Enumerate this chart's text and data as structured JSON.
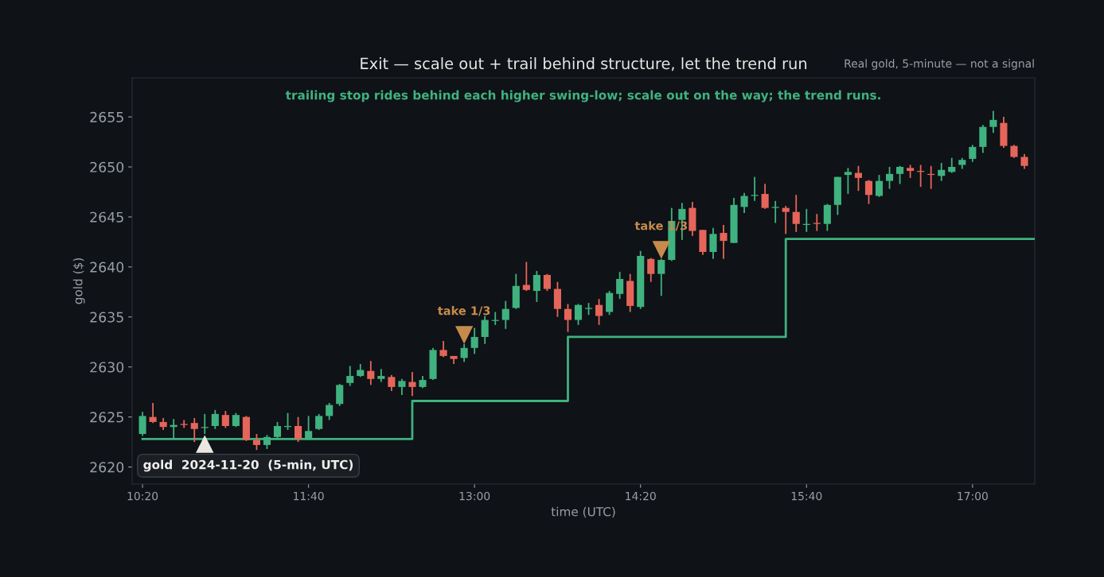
{
  "chart_data": {
    "type": "candlestick",
    "title": "Exit — scale out + trail behind structure, let the trend run",
    "subtitle": "trailing stop rides behind each higher swing-low; scale out on the way; the trend runs.",
    "xlabel": "time (UTC)",
    "ylabel": "gold ($)",
    "xlim": [
      "2024-11-20T10:15",
      "2024-11-20T17:30"
    ],
    "xticks": [
      {
        "value": "2024-11-20T10:20",
        "label": "10:20"
      },
      {
        "value": "2024-11-20T11:40",
        "label": "11:40"
      },
      {
        "value": "2024-11-20T13:00",
        "label": "13:00"
      },
      {
        "value": "2024-11-20T14:20",
        "label": "14:20"
      },
      {
        "value": "2024-11-20T15:40",
        "label": "15:40"
      },
      {
        "value": "2024-11-20T17:00",
        "label": "17:00"
      }
    ],
    "ylim": [
      2618.3,
      2658.9
    ],
    "yticks": [
      2620,
      2625,
      2630,
      2635,
      2640,
      2645,
      2650,
      2655
    ],
    "grid": false,
    "legend": false,
    "annotations": [
      "Real gold, 5-minute — not a signal",
      "gold  2024-11-20  (5-min, UTC)",
      {
        "text": "take 1/3",
        "x": "2024-11-20T12:55",
        "y": 2633.2
      },
      {
        "text": "take 1/3",
        "x": "2024-11-20T14:30",
        "y": 2641.7
      }
    ],
    "series": [
      {
        "colors": [
          "#3fb27f",
          "#e5655a",
          "#e5655a",
          "#3fb27f",
          "#e5655a",
          "#e5655a",
          "#3fb27f",
          "#3fb27f",
          "#e5655a",
          "#3fb27f",
          "#e5655a",
          "#e5655a",
          "#3fb27f",
          "#3fb27f",
          "#3fb27f",
          "#e5655a",
          "#3fb27f",
          "#3fb27f",
          "#3fb27f",
          "#3fb27f",
          "#3fb27f",
          "#3fb27f",
          "#e5655a",
          "#3fb27f",
          "#e5655a",
          "#3fb27f",
          "#e5655a",
          "#3fb27f",
          "#3fb27f",
          "#e5655a",
          "#e5655a",
          "#3fb27f",
          "#3fb27f",
          "#3fb27f",
          "#3fb27f",
          "#3fb27f",
          "#3fb27f",
          "#e5655a",
          "#3fb27f",
          "#e5655a",
          "#e5655a",
          "#e5655a",
          "#3fb27f",
          "#3fb27f",
          "#e5655a",
          "#3fb27f",
          "#3fb27f",
          "#e5655a",
          "#3fb27f",
          "#e5655a",
          "#3fb27f",
          "#3fb27f",
          "#3fb27f",
          "#e5655a",
          "#e5655a",
          "#3fb27f",
          "#e5655a",
          "#3fb27f",
          "#3fb27f",
          "#3fb27f",
          "#e5655a",
          "#3fb27f",
          "#e5655a",
          "#e5655a",
          "#3fb27f",
          "#e5655a",
          "#3fb27f",
          "#3fb27f",
          "#3fb27f",
          "#e5655a",
          "#e5655a",
          "#3fb27f",
          "#3fb27f",
          "#3fb27f",
          "#e5655a",
          "#e5655a",
          "#e5655a",
          "#3fb27f",
          "#3fb27f",
          "#3fb27f",
          "#3fb27f",
          "#3fb27f",
          "#3fb27f",
          "#e5655a",
          "#e5655a",
          "#e5655a"
        ],
        "x": [
          "2024-11-20T10:20",
          "2024-11-20T10:25",
          "2024-11-20T10:30",
          "2024-11-20T10:35",
          "2024-11-20T10:40",
          "2024-11-20T10:45",
          "2024-11-20T10:50",
          "2024-11-20T10:55",
          "2024-11-20T11:00",
          "2024-11-20T11:05",
          "2024-11-20T11:10",
          "2024-11-20T11:15",
          "2024-11-20T11:20",
          "2024-11-20T11:25",
          "2024-11-20T11:30",
          "2024-11-20T11:35",
          "2024-11-20T11:40",
          "2024-11-20T11:45",
          "2024-11-20T11:50",
          "2024-11-20T11:55",
          "2024-11-20T12:00",
          "2024-11-20T12:05",
          "2024-11-20T12:10",
          "2024-11-20T12:15",
          "2024-11-20T12:20",
          "2024-11-20T12:25",
          "2024-11-20T12:30",
          "2024-11-20T12:35",
          "2024-11-20T12:40",
          "2024-11-20T12:45",
          "2024-11-20T12:50",
          "2024-11-20T12:55",
          "2024-11-20T13:00",
          "2024-11-20T13:05",
          "2024-11-20T13:10",
          "2024-11-20T13:15",
          "2024-11-20T13:20",
          "2024-11-20T13:25",
          "2024-11-20T13:30",
          "2024-11-20T13:35",
          "2024-11-20T13:40",
          "2024-11-20T13:45",
          "2024-11-20T13:50",
          "2024-11-20T13:55",
          "2024-11-20T14:00",
          "2024-11-20T14:05",
          "2024-11-20T14:10",
          "2024-11-20T14:15",
          "2024-11-20T14:20",
          "2024-11-20T14:25",
          "2024-11-20T14:30",
          "2024-11-20T14:35",
          "2024-11-20T14:40",
          "2024-11-20T14:45",
          "2024-11-20T14:50",
          "2024-11-20T14:55",
          "2024-11-20T15:00",
          "2024-11-20T15:05",
          "2024-11-20T15:10",
          "2024-11-20T15:15",
          "2024-11-20T15:20",
          "2024-11-20T15:25",
          "2024-11-20T15:30",
          "2024-11-20T15:35",
          "2024-11-20T15:40",
          "2024-11-20T15:45",
          "2024-11-20T15:50",
          "2024-11-20T15:55",
          "2024-11-20T16:00",
          "2024-11-20T16:05",
          "2024-11-20T16:10",
          "2024-11-20T16:15",
          "2024-11-20T16:20",
          "2024-11-20T16:25",
          "2024-11-20T16:30",
          "2024-11-20T16:35",
          "2024-11-20T16:40",
          "2024-11-20T16:45",
          "2024-11-20T16:50",
          "2024-11-20T16:55",
          "2024-11-20T17:00",
          "2024-11-20T17:05",
          "2024-11-20T17:10",
          "2024-11-20T17:15",
          "2024-11-20T17:20",
          "2024-11-20T17:25"
        ],
        "ohlc": [
          [
            2623.3,
            2625.5,
            2623.1,
            2625.1
          ],
          [
            2625.0,
            2626.4,
            2624.4,
            2624.5
          ],
          [
            2624.5,
            2624.9,
            2623.7,
            2624.0
          ],
          [
            2624.0,
            2624.8,
            2622.9,
            2624.2
          ],
          [
            2624.3,
            2624.7,
            2623.9,
            2624.2
          ],
          [
            2624.4,
            2624.9,
            2622.5,
            2623.8
          ],
          [
            2623.9,
            2625.3,
            2623.3,
            2624.0
          ],
          [
            2624.1,
            2625.7,
            2623.8,
            2625.3
          ],
          [
            2625.2,
            2625.6,
            2623.9,
            2624.1
          ],
          [
            2624.1,
            2625.4,
            2624.0,
            2625.2
          ],
          [
            2625.0,
            2625.1,
            2622.6,
            2622.7
          ],
          [
            2622.7,
            2623.3,
            2621.7,
            2622.2
          ],
          [
            2622.2,
            2623.2,
            2621.8,
            2623.0
          ],
          [
            2623.0,
            2624.5,
            2622.9,
            2624.1
          ],
          [
            2624.0,
            2625.4,
            2623.7,
            2624.1
          ],
          [
            2624.1,
            2625.0,
            2622.5,
            2622.8
          ],
          [
            2622.8,
            2625.1,
            2622.7,
            2623.6
          ],
          [
            2623.8,
            2625.3,
            2623.7,
            2625.1
          ],
          [
            2625.1,
            2626.4,
            2624.7,
            2626.2
          ],
          [
            2626.3,
            2628.3,
            2626.1,
            2628.2
          ],
          [
            2628.4,
            2630.1,
            2628.1,
            2629.1
          ],
          [
            2629.1,
            2630.3,
            2629.0,
            2629.7
          ],
          [
            2629.6,
            2630.6,
            2628.2,
            2628.8
          ],
          [
            2628.8,
            2629.8,
            2628.5,
            2629.1
          ],
          [
            2629.0,
            2629.2,
            2627.6,
            2628.0
          ],
          [
            2628.0,
            2628.8,
            2627.2,
            2628.6
          ],
          [
            2628.5,
            2629.5,
            2627.1,
            2628.0
          ],
          [
            2628.0,
            2629.1,
            2627.9,
            2628.7
          ],
          [
            2628.8,
            2631.9,
            2628.7,
            2631.7
          ],
          [
            2631.7,
            2632.6,
            2631.0,
            2631.1
          ],
          [
            2631.1,
            2631.1,
            2630.3,
            2630.8
          ],
          [
            2630.9,
            2632.3,
            2630.5,
            2631.9
          ],
          [
            2631.9,
            2633.9,
            2631.3,
            2633.0
          ],
          [
            2633.0,
            2635.1,
            2632.3,
            2634.7
          ],
          [
            2634.6,
            2635.5,
            2634.2,
            2634.7
          ],
          [
            2634.7,
            2636.6,
            2633.8,
            2635.8
          ],
          [
            2635.9,
            2639.3,
            2635.8,
            2638.1
          ],
          [
            2638.2,
            2640.5,
            2637.6,
            2637.7
          ],
          [
            2637.6,
            2639.6,
            2636.5,
            2639.2
          ],
          [
            2639.2,
            2639.3,
            2637.6,
            2637.8
          ],
          [
            2637.8,
            2638.5,
            2635.0,
            2635.8
          ],
          [
            2635.8,
            2636.3,
            2633.5,
            2634.7
          ],
          [
            2634.7,
            2636.3,
            2634.2,
            2636.2
          ],
          [
            2635.8,
            2636.4,
            2635.2,
            2635.9
          ],
          [
            2636.2,
            2636.8,
            2634.2,
            2635.1
          ],
          [
            2635.5,
            2637.6,
            2635.2,
            2637.4
          ],
          [
            2637.3,
            2639.5,
            2636.8,
            2638.8
          ],
          [
            2638.6,
            2639.3,
            2635.5,
            2636.1
          ],
          [
            2636.0,
            2641.6,
            2635.8,
            2641.1
          ],
          [
            2640.8,
            2640.9,
            2638.5,
            2639.3
          ],
          [
            2639.3,
            2640.8,
            2637.1,
            2640.7
          ],
          [
            2640.7,
            2645.9,
            2640.6,
            2644.6
          ],
          [
            2644.7,
            2646.4,
            2642.7,
            2645.8
          ],
          [
            2645.9,
            2646.5,
            2643.1,
            2643.6
          ],
          [
            2643.7,
            2643.7,
            2641.2,
            2641.5
          ],
          [
            2641.5,
            2643.9,
            2640.8,
            2643.3
          ],
          [
            2643.4,
            2644.2,
            2640.8,
            2642.6
          ],
          [
            2642.4,
            2646.9,
            2642.4,
            2646.2
          ],
          [
            2646.0,
            2647.4,
            2645.4,
            2647.1
          ],
          [
            2647.1,
            2649.0,
            2646.6,
            2647.2
          ],
          [
            2647.3,
            2648.3,
            2645.8,
            2645.9
          ],
          [
            2645.9,
            2646.6,
            2644.4,
            2646.0
          ],
          [
            2645.9,
            2646.1,
            2643.3,
            2645.5
          ],
          [
            2645.5,
            2647.2,
            2643.5,
            2644.3
          ],
          [
            2644.2,
            2645.8,
            2643.5,
            2644.3
          ],
          [
            2644.4,
            2645.3,
            2643.6,
            2644.3
          ],
          [
            2644.3,
            2646.3,
            2643.6,
            2646.2
          ],
          [
            2646.2,
            2649.0,
            2645.2,
            2649.0
          ],
          [
            2649.2,
            2649.9,
            2647.3,
            2649.5
          ],
          [
            2649.4,
            2650.1,
            2647.6,
            2648.9
          ],
          [
            2648.6,
            2648.7,
            2646.3,
            2647.2
          ],
          [
            2647.1,
            2649.2,
            2647.0,
            2648.6
          ],
          [
            2648.6,
            2650.0,
            2647.8,
            2649.3
          ],
          [
            2649.3,
            2650.1,
            2648.3,
            2650.0
          ],
          [
            2649.9,
            2650.2,
            2648.9,
            2649.6
          ],
          [
            2649.6,
            2650.2,
            2648.0,
            2649.5
          ],
          [
            2649.3,
            2650.1,
            2647.8,
            2649.2
          ],
          [
            2649.1,
            2650.4,
            2648.6,
            2649.7
          ],
          [
            2649.5,
            2650.9,
            2649.4,
            2650.0
          ],
          [
            2650.2,
            2650.9,
            2649.8,
            2650.7
          ],
          [
            2650.8,
            2652.2,
            2650.5,
            2652.0
          ],
          [
            2652.0,
            2654.2,
            2651.4,
            2654.0
          ],
          [
            2654.0,
            2655.6,
            2653.4,
            2654.7
          ],
          [
            2654.4,
            2655.0,
            2651.9,
            2652.1
          ],
          [
            2652.1,
            2652.2,
            2650.9,
            2651.0
          ],
          [
            2651.0,
            2651.3,
            2649.8,
            2650.1
          ]
        ]
      },
      {
        "type": "step",
        "color": "#3fb27f",
        "line_style": "solid",
        "marker": "none",
        "x": [
          "2024-11-20T10:20",
          "2024-11-20T12:30",
          "2024-11-20T13:45",
          "2024-11-20T15:30",
          "2024-11-20T17:30"
        ],
        "values": [
          2622.8,
          2626.6,
          2633.0,
          2642.8,
          2642.8
        ]
      },
      {
        "type": "scatter",
        "color": "#ebe7df",
        "marker": "triangle",
        "x": [
          "2024-11-20T10:50"
        ],
        "values": [
          2622.3
        ]
      },
      {
        "type": "scatter",
        "color": "#c68b4c",
        "marker": "triangle_down",
        "x": [
          "2024-11-20T12:55",
          "2024-11-20T14:30"
        ],
        "values": [
          2633.2,
          2641.7
        ]
      }
    ]
  }
}
